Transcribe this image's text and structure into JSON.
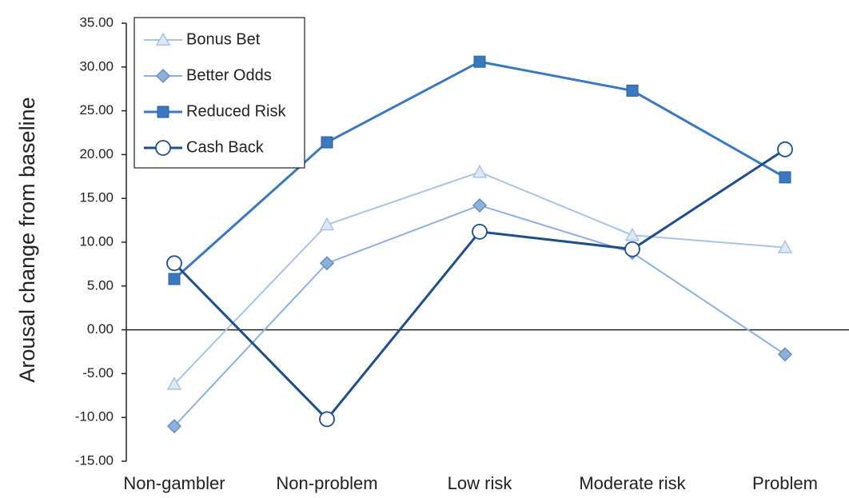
{
  "chart_data": {
    "type": "line",
    "y_label": "Arousal change from baseline",
    "categories": [
      "Non-gambler",
      "Non-problem",
      "Low risk",
      "Moderate risk",
      "Problem"
    ],
    "series": [
      {
        "name": "Bonus Bet",
        "color": "#a9c4e4",
        "marker": "triangle",
        "values": [
          -6.2,
          12.0,
          18.0,
          10.8,
          9.4
        ]
      },
      {
        "name": "Better Odds",
        "color": "#8fb0dc",
        "marker": "diamond",
        "values": [
          -11.0,
          7.6,
          14.2,
          8.8,
          -2.8
        ]
      },
      {
        "name": "Reduced Risk",
        "color": "#3a78c0",
        "marker": "square",
        "values": [
          5.8,
          21.4,
          30.6,
          27.3,
          17.4
        ]
      },
      {
        "name": "Cash Back",
        "color": "#1f4f8a",
        "marker": "circle",
        "values": [
          7.6,
          -10.2,
          11.2,
          9.2,
          20.6
        ]
      }
    ],
    "ylim": [
      -15,
      35
    ],
    "yticks": [
      {
        "value": -15,
        "label": "-15.00"
      },
      {
        "value": -10,
        "label": "-10.00"
      },
      {
        "value": -5,
        "label": "-5.00"
      },
      {
        "value": 0,
        "label": "0.00"
      },
      {
        "value": 5,
        "label": "5.00"
      },
      {
        "value": 10,
        "label": "10.00"
      },
      {
        "value": 15,
        "label": "15.00"
      },
      {
        "value": 20,
        "label": "20.00"
      },
      {
        "value": 25,
        "label": "25.00"
      },
      {
        "value": 30,
        "label": "30.00"
      },
      {
        "value": 35,
        "label": "35.00"
      }
    ],
    "legend": "top-left"
  }
}
